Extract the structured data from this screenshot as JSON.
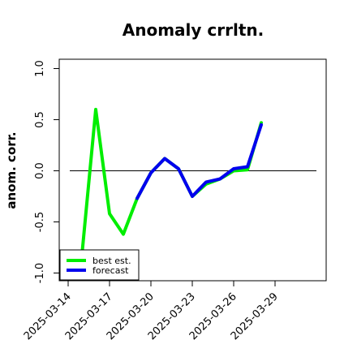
{
  "chart_data": {
    "type": "line",
    "title": "Anomaly crrltn.",
    "xlabel": "",
    "ylabel": "anom. corr.",
    "x": [
      "2025-03-13",
      "2025-03-14",
      "2025-03-15",
      "2025-03-16",
      "2025-03-17",
      "2025-03-18",
      "2025-03-19",
      "2025-03-20",
      "2025-03-21",
      "2025-03-22",
      "2025-03-23",
      "2025-03-24",
      "2025-03-25",
      "2025-03-26",
      "2025-03-27",
      "2025-03-28",
      "2025-03-29"
    ],
    "xticks": [
      "2025-03-14",
      "2025-03-17",
      "2025-03-20",
      "2025-03-23",
      "2025-03-26",
      "2025-03-29"
    ],
    "highlight_tick": "2025-03-20",
    "highlight_color": "#228b22",
    "ylim": [
      -1.05,
      1.08
    ],
    "yticks": [
      -1.0,
      -0.5,
      0.0,
      0.5,
      1.0
    ],
    "ytick_labels": [
      "-1.0",
      "-0.5",
      "0.0",
      "0.5",
      "1.0"
    ],
    "reference_line": 0.0,
    "series": [
      {
        "name": "best est.",
        "color": "#00ee00",
        "values": [
          null,
          null,
          -0.82,
          0.6,
          -0.42,
          -0.62,
          -0.27,
          -0.02,
          0.12,
          0.02,
          -0.25,
          -0.13,
          -0.08,
          0.0,
          0.01,
          0.47,
          null
        ]
      },
      {
        "name": "forecast",
        "color": "#0000ee",
        "values": [
          null,
          null,
          null,
          null,
          null,
          null,
          -0.27,
          -0.02,
          0.12,
          0.02,
          -0.25,
          -0.11,
          -0.08,
          0.02,
          0.04,
          0.45,
          null
        ]
      }
    ],
    "legend_position": "bottom-left",
    "grid": false
  }
}
